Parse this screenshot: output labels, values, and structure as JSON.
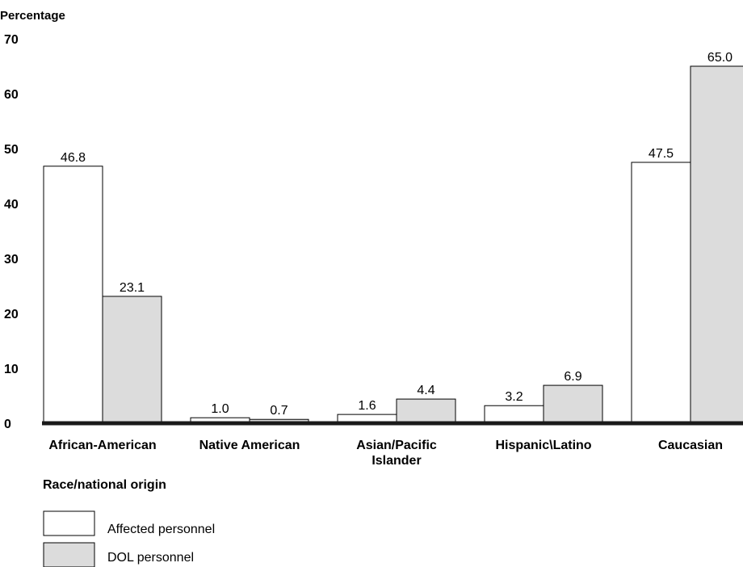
{
  "chart_data": {
    "type": "bar",
    "ylabel": "Percentage",
    "xlabel": "Race/national origin",
    "ylim": [
      0,
      70
    ],
    "yticks": [
      "0",
      "10",
      "20",
      "30",
      "40",
      "50",
      "60",
      "70"
    ],
    "categories": [
      [
        "African-American"
      ],
      [
        "Native American"
      ],
      [
        "Asian/Pacific",
        "Islander"
      ],
      [
        "Hispanic\\Latino"
      ],
      [
        "Caucasian"
      ]
    ],
    "series": [
      {
        "name": "Affected personnel",
        "color": "#ffffff",
        "values": [
          46.8,
          1.0,
          1.6,
          3.2,
          47.5
        ],
        "labels": [
          "46.8",
          "1.0",
          "1.6",
          "3.2",
          "47.5"
        ]
      },
      {
        "name": "DOL personnel",
        "color": "#dcdcdc",
        "values": [
          23.1,
          0.7,
          4.4,
          6.9,
          65.0
        ],
        "labels": [
          "23.1",
          "0.7",
          "4.4",
          "6.9",
          "65.0"
        ]
      }
    ],
    "grid": false,
    "legend_position": "bottom-left"
  }
}
